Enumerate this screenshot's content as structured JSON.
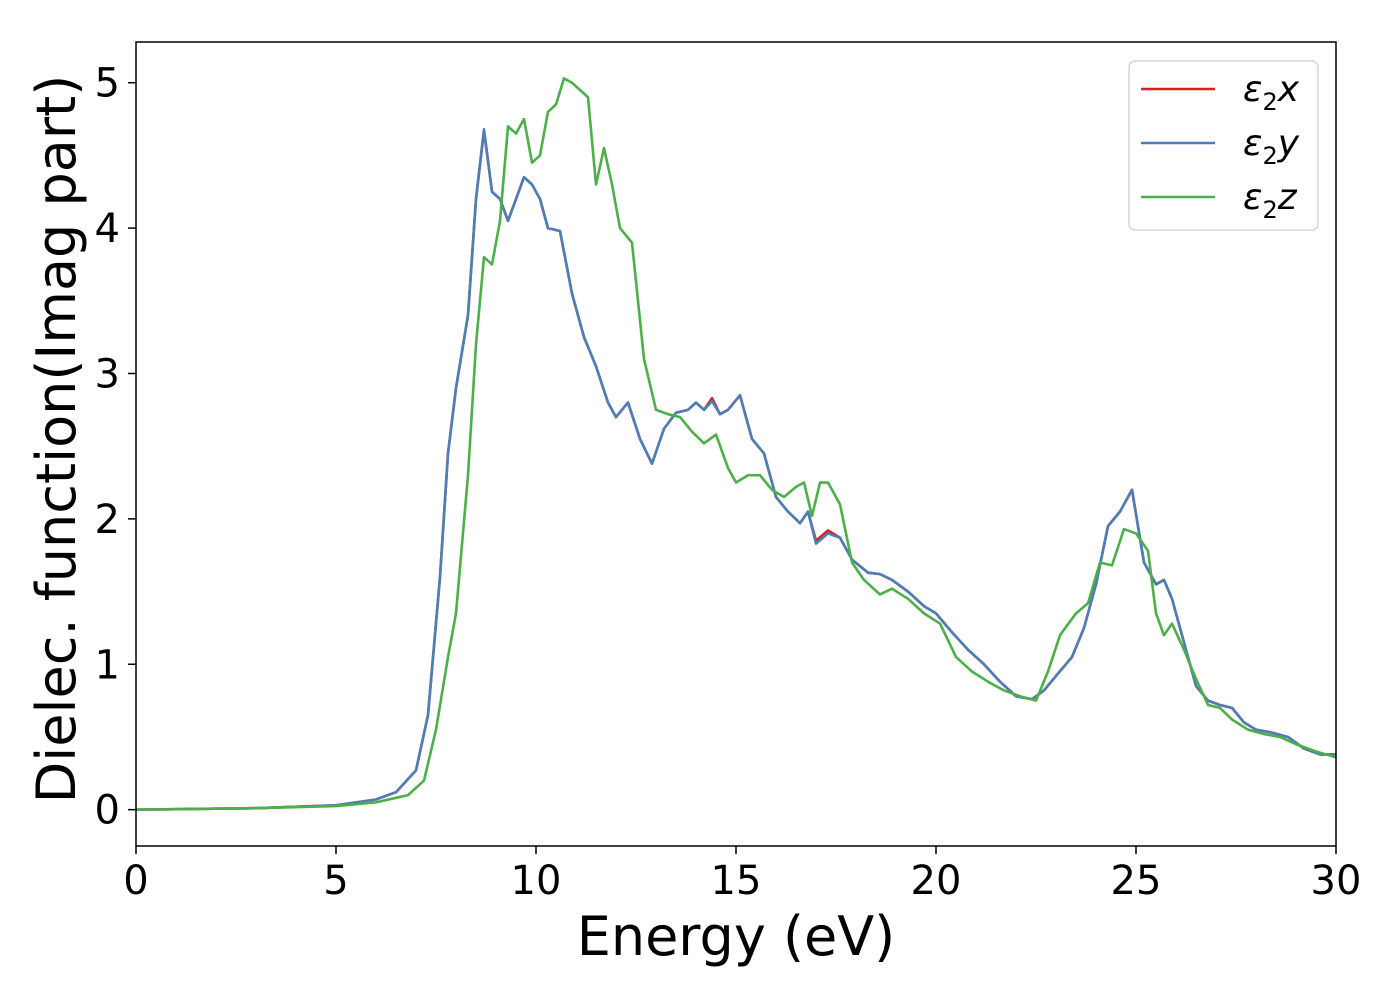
{
  "chart_data": {
    "type": "line",
    "title": "",
    "xlabel": "Energy (eV)",
    "ylabel": "Dielec. function(Imag part)",
    "xlim": [
      0,
      30
    ],
    "ylim": [
      -0.25,
      5.28
    ],
    "xticks": [
      0,
      5,
      10,
      15,
      20,
      25,
      30
    ],
    "yticks": [
      0,
      1,
      2,
      3,
      4,
      5
    ],
    "xtick_labels": [
      "0",
      "5",
      "10",
      "15",
      "20",
      "25",
      "30"
    ],
    "ytick_labels": [
      "0",
      "1",
      "2",
      "3",
      "4",
      "5"
    ],
    "grid": false,
    "legend_position": "top-right",
    "series": [
      {
        "name": "ε2x",
        "legend_main": "ε",
        "legend_sub": "2",
        "legend_var": "x",
        "color": "#e41a1c",
        "x": [
          0,
          3,
          5,
          6,
          6.5,
          7,
          7.3,
          7.6,
          7.8,
          8.0,
          8.3,
          8.5,
          8.7,
          8.9,
          9.1,
          9.3,
          9.5,
          9.7,
          9.9,
          10.1,
          10.3,
          10.6,
          10.9,
          11.2,
          11.5,
          11.8,
          12.0,
          12.3,
          12.6,
          12.9,
          13.2,
          13.5,
          13.8,
          14.0,
          14.2,
          14.4,
          14.6,
          14.8,
          15.1,
          15.4,
          15.7,
          16.0,
          16.3,
          16.6,
          16.8,
          17.0,
          17.3,
          17.6,
          17.9,
          18.3,
          18.6,
          18.9,
          19.3,
          19.7,
          20.0,
          20.4,
          20.8,
          21.2,
          21.6,
          22.0,
          22.4,
          22.7,
          23.0,
          23.4,
          23.7,
          24.0,
          24.3,
          24.6,
          24.9,
          25.2,
          25.5,
          25.7,
          25.9,
          26.2,
          26.5,
          26.8,
          27.1,
          27.4,
          27.7,
          28.0,
          28.4,
          28.8,
          29.2,
          29.6,
          30
        ],
        "y": [
          0,
          0.01,
          0.03,
          0.07,
          0.12,
          0.27,
          0.65,
          1.6,
          2.45,
          2.9,
          3.4,
          4.2,
          4.67,
          4.25,
          4.2,
          4.05,
          4.2,
          4.35,
          4.3,
          4.2,
          4.0,
          3.98,
          3.55,
          3.25,
          3.05,
          2.8,
          2.7,
          2.8,
          2.55,
          2.38,
          2.62,
          2.73,
          2.75,
          2.8,
          2.75,
          2.83,
          2.72,
          2.75,
          2.85,
          2.55,
          2.45,
          2.15,
          2.05,
          1.97,
          2.05,
          1.85,
          1.92,
          1.87,
          1.72,
          1.63,
          1.62,
          1.58,
          1.5,
          1.4,
          1.35,
          1.22,
          1.1,
          1.0,
          0.88,
          0.78,
          0.76,
          0.82,
          0.92,
          1.05,
          1.25,
          1.55,
          1.95,
          2.05,
          2.2,
          1.7,
          1.55,
          1.58,
          1.45,
          1.15,
          0.85,
          0.75,
          0.72,
          0.7,
          0.6,
          0.55,
          0.53,
          0.5,
          0.42,
          0.38,
          0.38
        ]
      },
      {
        "name": "ε2y",
        "legend_main": "ε",
        "legend_sub": "2",
        "legend_var": "y",
        "color": "#4a7fb8",
        "x": [
          0,
          3,
          5,
          6,
          6.5,
          7,
          7.3,
          7.6,
          7.8,
          8.0,
          8.3,
          8.5,
          8.7,
          8.9,
          9.1,
          9.3,
          9.5,
          9.7,
          9.9,
          10.1,
          10.3,
          10.6,
          10.9,
          11.2,
          11.5,
          11.8,
          12.0,
          12.3,
          12.6,
          12.9,
          13.2,
          13.5,
          13.8,
          14.0,
          14.2,
          14.4,
          14.6,
          14.8,
          15.1,
          15.4,
          15.7,
          16.0,
          16.3,
          16.6,
          16.8,
          17.0,
          17.3,
          17.6,
          17.9,
          18.3,
          18.6,
          18.9,
          19.3,
          19.7,
          20.0,
          20.4,
          20.8,
          21.2,
          21.6,
          22.0,
          22.4,
          22.7,
          23.0,
          23.4,
          23.7,
          24.0,
          24.3,
          24.6,
          24.9,
          25.2,
          25.5,
          25.7,
          25.9,
          26.2,
          26.5,
          26.8,
          27.1,
          27.4,
          27.7,
          28.0,
          28.4,
          28.8,
          29.2,
          29.6,
          30
        ],
        "y": [
          0,
          0.01,
          0.03,
          0.07,
          0.12,
          0.27,
          0.65,
          1.6,
          2.45,
          2.9,
          3.4,
          4.2,
          4.68,
          4.25,
          4.2,
          4.05,
          4.2,
          4.35,
          4.3,
          4.2,
          4.0,
          3.98,
          3.55,
          3.25,
          3.05,
          2.8,
          2.7,
          2.8,
          2.55,
          2.38,
          2.62,
          2.73,
          2.75,
          2.8,
          2.75,
          2.81,
          2.72,
          2.75,
          2.85,
          2.55,
          2.45,
          2.15,
          2.05,
          1.97,
          2.05,
          1.83,
          1.9,
          1.87,
          1.72,
          1.63,
          1.62,
          1.58,
          1.5,
          1.4,
          1.35,
          1.22,
          1.1,
          1.0,
          0.88,
          0.78,
          0.76,
          0.82,
          0.92,
          1.05,
          1.25,
          1.55,
          1.95,
          2.05,
          2.2,
          1.7,
          1.55,
          1.58,
          1.45,
          1.15,
          0.85,
          0.75,
          0.72,
          0.7,
          0.6,
          0.55,
          0.53,
          0.5,
          0.42,
          0.38,
          0.38
        ]
      },
      {
        "name": "ε2z",
        "legend_main": "ε",
        "legend_sub": "2",
        "legend_var": "z",
        "color": "#4daf4a",
        "x": [
          0,
          3,
          5,
          6,
          6.8,
          7.2,
          7.5,
          7.8,
          8.0,
          8.3,
          8.5,
          8.7,
          8.9,
          9.1,
          9.3,
          9.5,
          9.7,
          9.9,
          10.1,
          10.3,
          10.5,
          10.7,
          10.9,
          11.1,
          11.3,
          11.5,
          11.7,
          11.9,
          12.1,
          12.4,
          12.7,
          13.0,
          13.3,
          13.6,
          13.9,
          14.2,
          14.5,
          14.8,
          15.0,
          15.3,
          15.6,
          15.9,
          16.2,
          16.5,
          16.7,
          16.9,
          17.1,
          17.3,
          17.6,
          17.9,
          18.2,
          18.6,
          18.9,
          19.3,
          19.7,
          20.1,
          20.5,
          20.9,
          21.3,
          21.7,
          22.1,
          22.5,
          22.8,
          23.1,
          23.5,
          23.8,
          24.1,
          24.4,
          24.7,
          25.0,
          25.3,
          25.5,
          25.7,
          25.9,
          26.2,
          26.5,
          26.8,
          27.1,
          27.4,
          27.8,
          28.2,
          28.6,
          29.0,
          29.5,
          30
        ],
        "y": [
          0,
          0.01,
          0.025,
          0.05,
          0.1,
          0.2,
          0.55,
          1.05,
          1.35,
          2.3,
          3.2,
          3.8,
          3.75,
          4.05,
          4.7,
          4.65,
          4.75,
          4.45,
          4.5,
          4.8,
          4.85,
          5.03,
          5.0,
          4.95,
          4.9,
          4.3,
          4.55,
          4.3,
          4.0,
          3.9,
          3.1,
          2.75,
          2.72,
          2.7,
          2.6,
          2.52,
          2.58,
          2.35,
          2.25,
          2.3,
          2.3,
          2.2,
          2.15,
          2.22,
          2.25,
          2.02,
          2.25,
          2.25,
          2.1,
          1.7,
          1.58,
          1.48,
          1.52,
          1.45,
          1.35,
          1.28,
          1.05,
          0.95,
          0.88,
          0.82,
          0.78,
          0.75,
          0.95,
          1.2,
          1.35,
          1.42,
          1.7,
          1.68,
          1.93,
          1.9,
          1.78,
          1.35,
          1.2,
          1.28,
          1.1,
          0.9,
          0.72,
          0.7,
          0.62,
          0.55,
          0.52,
          0.5,
          0.45,
          0.4,
          0.36
        ]
      }
    ]
  }
}
